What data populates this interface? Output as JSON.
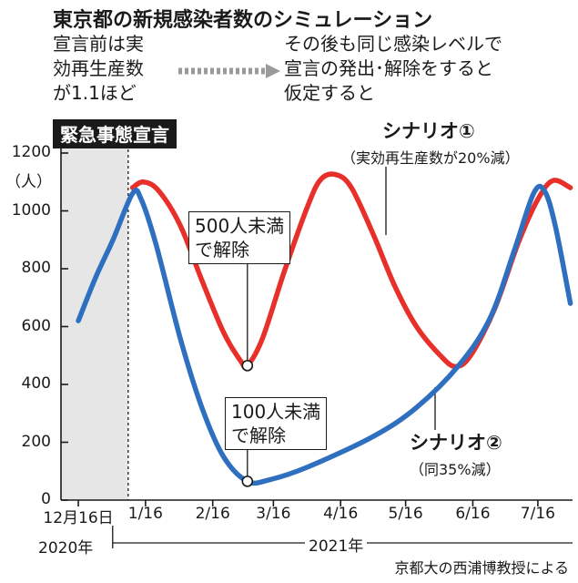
{
  "header": {
    "title": "東京都の新規感染者数のシミュレーション",
    "note_left": "宣言前は実\n効再生産数\nが1.1ほど",
    "note_right": "その後も同じ感染レベルで\n宣言の発出･解除をすると\n仮定すると",
    "emergency_label": "緊急事態宣言"
  },
  "annotations": {
    "release_500": "500人未満\nで解除",
    "release_100": "100人未満\nで解除",
    "scenario1_name": "シナリオ①",
    "scenario1_desc": "（実効再生産数が20%減）",
    "scenario2_name": "シナリオ②",
    "scenario2_desc": "（同35%減）"
  },
  "source": "京都大の西浦博教授による",
  "colors": {
    "scenario1": "#e8302a",
    "scenario2": "#2f6fbf",
    "shade": "#e6e6e6",
    "axis": "#1a1a1a"
  },
  "chart_data": {
    "type": "line",
    "title": "東京都の新規感染者数のシミュレーション",
    "ylabel": "（人）",
    "ylim": [
      0,
      1200
    ],
    "yticks": [
      0,
      200,
      400,
      600,
      800,
      1000,
      1200
    ],
    "ytick_labels": [
      "0",
      "200",
      "400",
      "600",
      "800",
      "1000",
      "1200"
    ],
    "xlim": [
      "2020-12-08",
      "2021-08-01"
    ],
    "xticks": [
      "2020-12-16",
      "2021-01-16",
      "2021-02-16",
      "2021-03-16",
      "2021-04-16",
      "2021-05-16",
      "2021-06-16",
      "2021-07-16"
    ],
    "xtick_labels": [
      "12月16日",
      "1/16",
      "2/16",
      "3/16",
      "4/16",
      "5/16",
      "6/16",
      "7/16"
    ],
    "year_labels": [
      "2020年",
      "2021年"
    ],
    "shaded_period": [
      "2020-12-08",
      "2021-01-08"
    ],
    "grid": false,
    "series": [
      {
        "name": "シナリオ①",
        "points": [
          [
            "2021-01-10",
            1080
          ],
          [
            "2021-01-15",
            1100
          ],
          [
            "2021-01-22",
            1070
          ],
          [
            "2021-02-01",
            950
          ],
          [
            "2021-02-11",
            760
          ],
          [
            "2021-02-21",
            580
          ],
          [
            "2021-03-01",
            480
          ],
          [
            "2021-03-04",
            465
          ],
          [
            "2021-03-11",
            560
          ],
          [
            "2021-03-21",
            790
          ],
          [
            "2021-04-01",
            1020
          ],
          [
            "2021-04-07",
            1110
          ],
          [
            "2021-04-14",
            1125
          ],
          [
            "2021-04-21",
            1080
          ],
          [
            "2021-05-01",
            920
          ],
          [
            "2021-05-11",
            740
          ],
          [
            "2021-05-21",
            600
          ],
          [
            "2021-06-01",
            500
          ],
          [
            "2021-06-08",
            462
          ],
          [
            "2021-06-15",
            500
          ],
          [
            "2021-06-26",
            660
          ],
          [
            "2021-07-07",
            890
          ],
          [
            "2021-07-16",
            1040
          ],
          [
            "2021-07-23",
            1105
          ],
          [
            "2021-07-31",
            1080
          ]
        ]
      },
      {
        "name": "シナリオ②",
        "points": [
          [
            "2020-12-16",
            620
          ],
          [
            "2020-12-24",
            770
          ],
          [
            "2021-01-01",
            900
          ],
          [
            "2021-01-10",
            1060
          ],
          [
            "2021-01-14",
            1040
          ],
          [
            "2021-01-21",
            880
          ],
          [
            "2021-02-01",
            560
          ],
          [
            "2021-02-11",
            320
          ],
          [
            "2021-02-21",
            150
          ],
          [
            "2021-03-04",
            65
          ],
          [
            "2021-03-14",
            70
          ],
          [
            "2021-04-01",
            115
          ],
          [
            "2021-05-01",
            220
          ],
          [
            "2021-05-21",
            320
          ],
          [
            "2021-06-10",
            470
          ],
          [
            "2021-06-24",
            630
          ],
          [
            "2021-07-05",
            860
          ],
          [
            "2021-07-14",
            1060
          ],
          [
            "2021-07-19",
            1070
          ],
          [
            "2021-07-24",
            950
          ],
          [
            "2021-07-31",
            680
          ]
        ]
      }
    ],
    "markers": [
      {
        "series": "シナリオ①",
        "point": [
          "2021-03-04",
          465
        ]
      },
      {
        "series": "シナリオ②",
        "point": [
          "2021-03-04",
          65
        ]
      }
    ]
  }
}
